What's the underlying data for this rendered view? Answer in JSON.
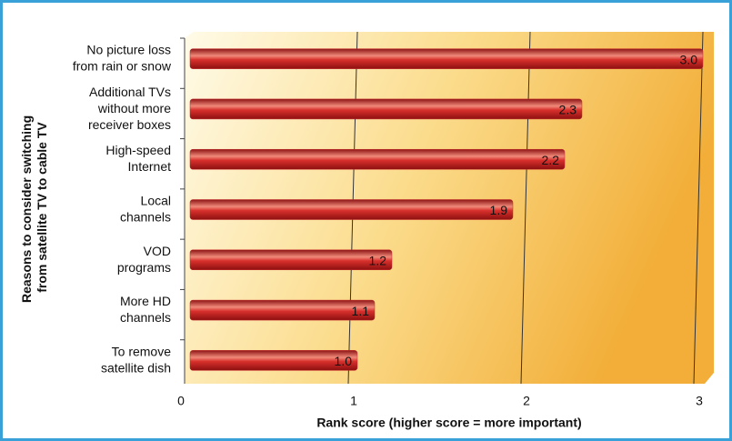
{
  "chart_data": {
    "type": "bar",
    "orientation": "horizontal",
    "ylabel": [
      "Reasons to consider switching",
      "from satellite TV to cable TV"
    ],
    "xlabel": "Rank score (higher score = more important)",
    "categories": [
      [
        "No picture loss",
        "from rain or snow"
      ],
      [
        "Additional TVs",
        "without more",
        "receiver boxes"
      ],
      [
        "High-speed",
        "Internet"
      ],
      [
        "Local",
        "channels"
      ],
      [
        "VOD",
        "programs"
      ],
      [
        "More HD",
        "channels"
      ],
      [
        "To remove",
        "satellite dish"
      ]
    ],
    "values": [
      3.0,
      2.3,
      2.2,
      1.9,
      1.2,
      1.1,
      1.0
    ],
    "value_labels": [
      "3.0",
      "2.3",
      "2.2",
      "1.9",
      "1.2",
      "1.1",
      "1.0"
    ],
    "color": "#c8282a",
    "xlim": [
      0,
      3.1
    ],
    "xticks": [
      0,
      1,
      2,
      3
    ],
    "grid": true
  }
}
